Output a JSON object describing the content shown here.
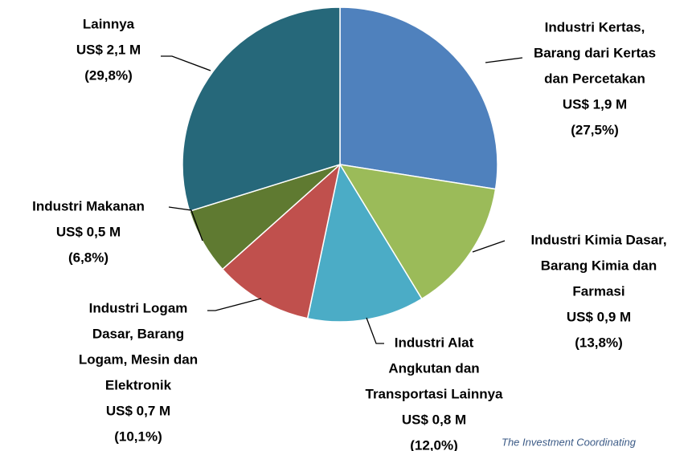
{
  "chart_data": {
    "type": "pie",
    "categories": [
      [
        "Industri Kertas,",
        "Barang dari Kertas",
        "dan Percetakan"
      ],
      [
        "Industri Kimia Dasar,",
        "Barang Kimia dan",
        "Farmasi"
      ],
      [
        "Industri Alat",
        "Angkutan dan",
        "Transportasi Lainnya"
      ],
      [
        "Industri Logam",
        "Dasar, Barang",
        "Logam, Mesin dan",
        "Elektronik"
      ],
      [
        "Industri Makanan"
      ],
      [
        "Lainnya"
      ]
    ],
    "values": [
      27.5,
      13.8,
      12.0,
      10.1,
      6.8,
      29.8
    ],
    "value_labels": [
      "(27,5%)",
      "(13,8%)",
      "(12,0%)",
      "(10,1%)",
      "(6,8%)",
      "(29,8%)"
    ],
    "amounts": [
      1.9,
      0.9,
      0.8,
      0.7,
      0.5,
      2.1
    ],
    "amount_labels": [
      "US$ 1,9 M",
      "US$ 0,9 M",
      "US$ 0,8 M",
      "US$ 0,7 M",
      "US$ 0,5 M",
      "US$ 2,1 M"
    ],
    "colors": [
      "#4f81bd",
      "#9bbb59",
      "#4bacc6",
      "#c0504d",
      "#5f7a31",
      "#26687a"
    ],
    "source": "The Investment Coordinating"
  }
}
